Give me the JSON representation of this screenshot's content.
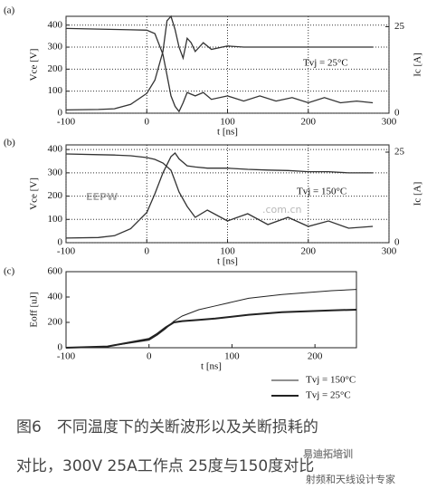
{
  "chart_data": [
    {
      "type": "line",
      "panel_label": "(a)",
      "xlabel": "t [ns]",
      "ylabel": "Vce [V]",
      "y2label": "Ic [A]",
      "annotation": "Tvj = 25°C",
      "xlim": [
        -100,
        300
      ],
      "xticks": [
        -100,
        0,
        100,
        200,
        300
      ],
      "ylim": [
        0,
        440
      ],
      "yticks": [
        0,
        100,
        200,
        300,
        400
      ],
      "y2lim": [
        0,
        28
      ],
      "y2ticks": [
        0,
        25
      ],
      "grid": true,
      "x": [
        -100,
        -60,
        -40,
        -20,
        0,
        10,
        20,
        25,
        30,
        35,
        40,
        45,
        50,
        55,
        60,
        70,
        80,
        100,
        120,
        140,
        160,
        180,
        200,
        220,
        240,
        260,
        280
      ],
      "series": [
        {
          "color": "#333333",
          "line_width": 1.3,
          "values": [
            15,
            17,
            20,
            40,
            90,
            150,
            280,
            420,
            440,
            380,
            300,
            250,
            340,
            320,
            280,
            320,
            290,
            305,
            300,
            300,
            300,
            300,
            300,
            300,
            300,
            300,
            300
          ]
        },
        {
          "color": "#333333",
          "line_width": 1.3,
          "axis": "y2",
          "values": [
            24.5,
            24.3,
            24.2,
            24.1,
            24,
            23,
            17,
            11,
            5,
            2,
            0.5,
            3,
            6,
            5.5,
            5,
            6,
            4,
            5,
            3.5,
            5,
            3.5,
            4.5,
            3,
            4.5,
            3,
            3.5,
            3
          ]
        }
      ]
    },
    {
      "type": "line",
      "panel_label": "(b)",
      "xlabel": "t [ns]",
      "ylabel": "Vce [V]",
      "y2label": "Ic [A]",
      "annotation": "Tvj = 150°C",
      "xlim": [
        -100,
        300
      ],
      "xticks": [
        -100,
        0,
        100,
        200,
        300
      ],
      "ylim": [
        0,
        420
      ],
      "yticks": [
        0,
        100,
        200,
        300,
        400
      ],
      "y2lim": [
        0,
        27
      ],
      "y2ticks": [
        0,
        25
      ],
      "grid": true,
      "x": [
        -100,
        -60,
        -40,
        -20,
        0,
        10,
        20,
        30,
        35,
        40,
        50,
        60,
        75,
        100,
        125,
        150,
        175,
        200,
        225,
        250,
        280
      ],
      "series": [
        {
          "color": "#333333",
          "line_width": 1.3,
          "values": [
            20,
            22,
            30,
            60,
            130,
            210,
            300,
            370,
            385,
            360,
            330,
            325,
            320,
            320,
            315,
            312,
            310,
            305,
            305,
            300,
            300
          ]
        },
        {
          "color": "#333333",
          "line_width": 1.3,
          "axis": "y2",
          "values": [
            24.5,
            24.3,
            24.2,
            24,
            23.5,
            23,
            22,
            20,
            17,
            14,
            10,
            7,
            9,
            6,
            8,
            5,
            7,
            4.5,
            6,
            4,
            4.5
          ]
        }
      ]
    },
    {
      "type": "line",
      "panel_label": "(c)",
      "xlabel": "t [ns]",
      "ylabel": "Eoff [uJ]",
      "legend": "bottom-right",
      "xlim": [
        -100,
        250
      ],
      "xticks": [
        -100,
        0,
        100,
        200
      ],
      "ylim": [
        0,
        600
      ],
      "yticks": [
        0,
        200,
        400,
        600
      ],
      "grid": false,
      "x": [
        -100,
        -50,
        0,
        10,
        20,
        30,
        40,
        60,
        80,
        120,
        160,
        220,
        250
      ],
      "series": [
        {
          "name": "Tvj = 150°C",
          "color": "#222222",
          "line_width": 1,
          "values": [
            0,
            10,
            60,
            100,
            150,
            210,
            250,
            300,
            330,
            390,
            420,
            450,
            460
          ]
        },
        {
          "name": "Tvj = 25°C",
          "color": "#222222",
          "line_width": 2,
          "values": [
            0,
            10,
            70,
            110,
            160,
            200,
            210,
            220,
            230,
            260,
            280,
            295,
            300
          ]
        }
      ]
    }
  ],
  "caption": [
    "图6　不同温度下的关断波形以及关断损耗的",
    "对比，300V 25A工作点 25度与150度对比"
  ],
  "watermarks": [
    "EEPW",
    ".com.cn",
    "易迪拓培训",
    "射频和天线设计专家"
  ]
}
